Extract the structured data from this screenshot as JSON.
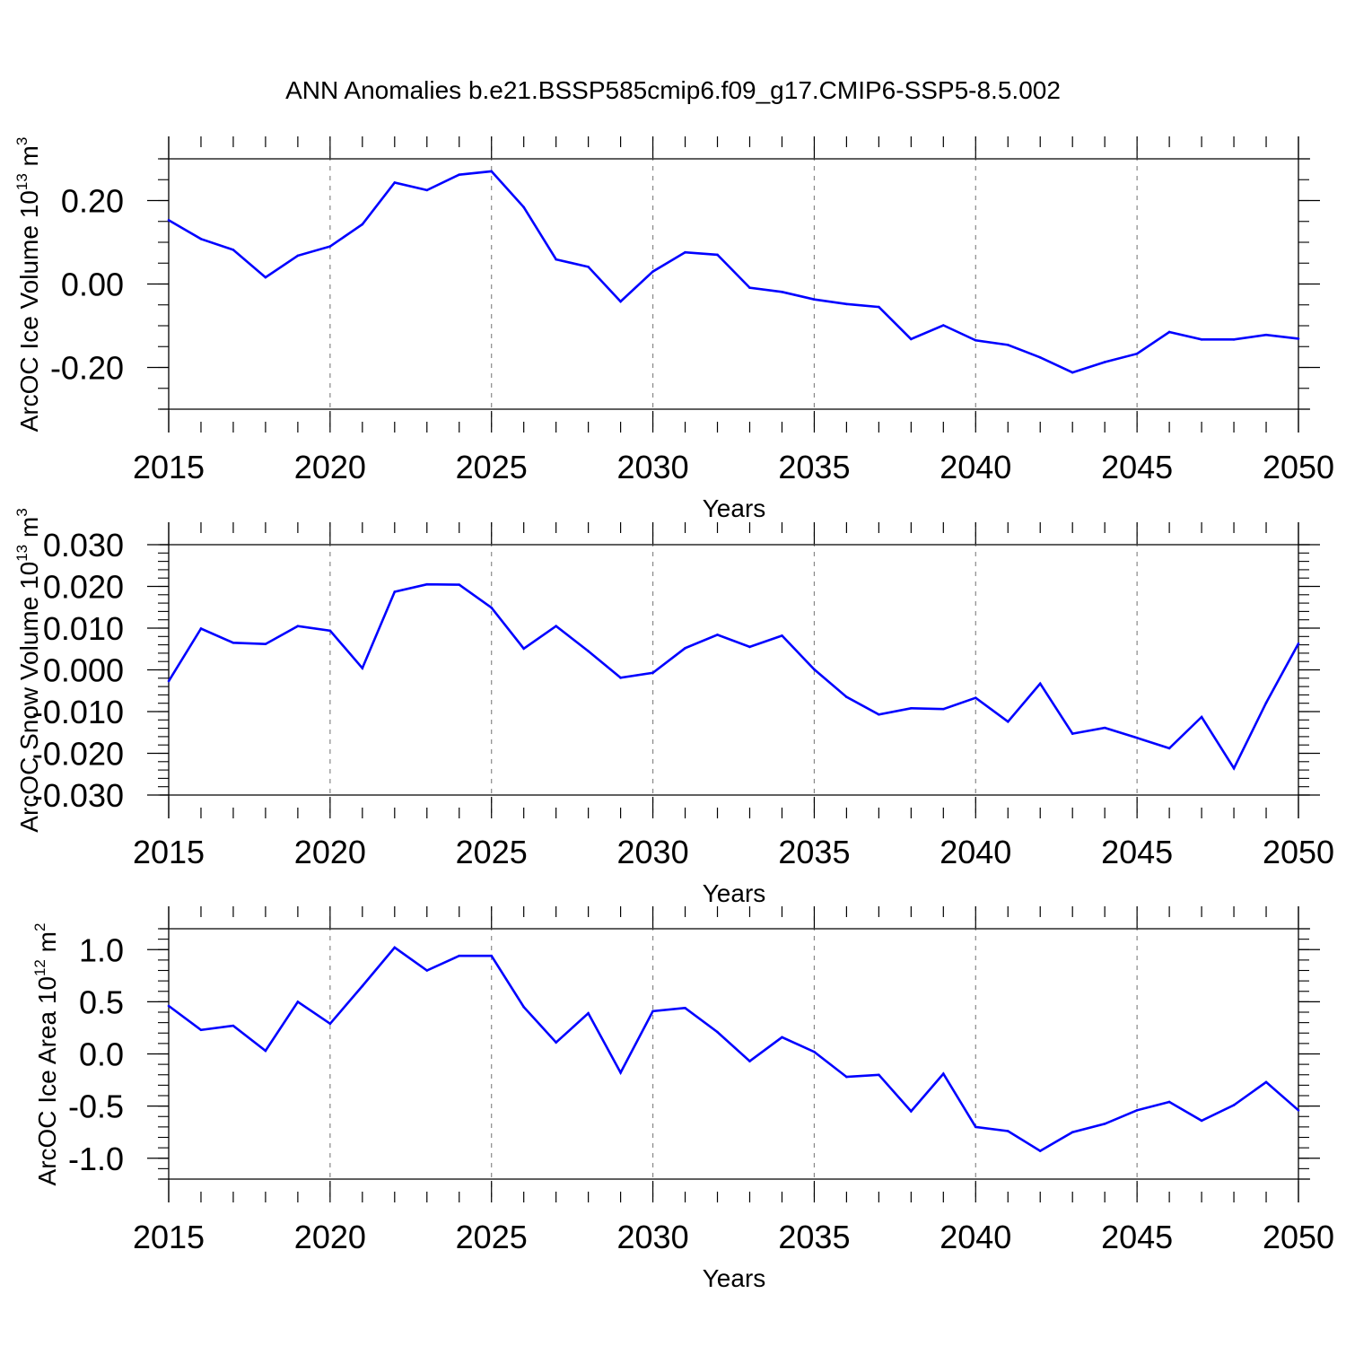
{
  "title": "ANN Anomalies b.e21.BSSP585cmip6.f09_g17.CMIP6-SSP5-8.5.002",
  "colors": {
    "line": "#0000ff",
    "axis": "#000000",
    "grid": "#888888"
  },
  "chart_data": [
    {
      "type": "line",
      "ylabel": "ArcOC Ice Volume 10",
      "ylabel_exp": "13",
      "ylabel_unit": "m",
      "ylabel_unit_exp": "3",
      "xlabel": "Years",
      "xlim": [
        2015,
        2050
      ],
      "ylim": [
        -0.3,
        0.3
      ],
      "yticks": [
        -0.2,
        0.0,
        0.2
      ],
      "ytick_labels": [
        "-0.20",
        "0.00",
        "0.20"
      ],
      "yminor_step": 0.05,
      "xticks": [
        2015,
        2020,
        2025,
        2030,
        2035,
        2040,
        2045,
        2050
      ],
      "xtick_labels": [
        "2015",
        "2020",
        "2025",
        "2030",
        "2035",
        "2040",
        "2045",
        "2050"
      ],
      "x": [
        2015,
        2016,
        2017,
        2018,
        2019,
        2020,
        2021,
        2022,
        2023,
        2024,
        2025,
        2026,
        2027,
        2028,
        2029,
        2030,
        2031,
        2032,
        2033,
        2034,
        2035,
        2036,
        2037,
        2038,
        2039,
        2040,
        2041,
        2042,
        2043,
        2044,
        2045,
        2046,
        2047,
        2048,
        2049,
        2050
      ],
      "values": [
        0.153,
        0.108,
        0.082,
        0.016,
        0.068,
        0.09,
        0.143,
        0.243,
        0.225,
        0.262,
        0.27,
        0.184,
        0.059,
        0.041,
        -0.042,
        0.03,
        0.076,
        0.07,
        -0.009,
        -0.019,
        -0.037,
        -0.048,
        -0.055,
        -0.132,
        -0.099,
        -0.135,
        -0.146,
        -0.176,
        -0.212,
        -0.187,
        -0.167,
        -0.115,
        -0.133,
        -0.133,
        -0.122,
        -0.131
      ]
    },
    {
      "type": "line",
      "ylabel": "ArcOC Snow Volume 10",
      "ylabel_exp": "13",
      "ylabel_unit": "m",
      "ylabel_unit_exp": "3",
      "xlabel": "Years",
      "xlim": [
        2015,
        2050
      ],
      "ylim": [
        -0.03,
        0.03
      ],
      "yticks": [
        -0.03,
        -0.02,
        -0.01,
        0.0,
        0.01,
        0.02,
        0.03
      ],
      "ytick_labels": [
        "-0.030",
        "-0.020",
        "-0.010",
        "0.000",
        "0.010",
        "0.020",
        "0.030"
      ],
      "yminor_step": 0.002,
      "xticks": [
        2015,
        2020,
        2025,
        2030,
        2035,
        2040,
        2045,
        2050
      ],
      "xtick_labels": [
        "2015",
        "2020",
        "2025",
        "2030",
        "2035",
        "2040",
        "2045",
        "2050"
      ],
      "x": [
        2015,
        2016,
        2017,
        2018,
        2019,
        2020,
        2021,
        2022,
        2023,
        2024,
        2025,
        2026,
        2027,
        2028,
        2029,
        2030,
        2031,
        2032,
        2033,
        2034,
        2035,
        2036,
        2037,
        2038,
        2039,
        2040,
        2041,
        2042,
        2043,
        2044,
        2045,
        2046,
        2047,
        2048,
        2049,
        2050
      ],
      "values": [
        -0.0027,
        0.0099,
        0.0065,
        0.0062,
        0.0105,
        0.0094,
        0.0004,
        0.0187,
        0.0205,
        0.0204,
        0.0149,
        0.0051,
        0.0105,
        0.0045,
        -0.0019,
        -0.0007,
        0.0052,
        0.0084,
        0.0055,
        0.0082,
        0.0001,
        -0.0065,
        -0.0107,
        -0.0092,
        -0.0094,
        -0.0067,
        -0.0124,
        -0.0033,
        -0.0153,
        -0.0139,
        -0.0163,
        -0.0188,
        -0.0113,
        -0.0236,
        -0.0079,
        0.0063
      ]
    },
    {
      "type": "line",
      "ylabel": "ArcOC Ice Area 10",
      "ylabel_exp": "12",
      "ylabel_unit": "m",
      "ylabel_unit_exp": "2",
      "xlabel": "Years",
      "xlim": [
        2015,
        2050
      ],
      "ylim": [
        -1.2,
        1.2
      ],
      "yticks": [
        -1.0,
        -0.5,
        0.0,
        0.5,
        1.0
      ],
      "ytick_labels": [
        "-1.0",
        "-0.5",
        "0.0",
        "0.5",
        "1.0"
      ],
      "yminor_step": 0.1,
      "xticks": [
        2015,
        2020,
        2025,
        2030,
        2035,
        2040,
        2045,
        2050
      ],
      "xtick_labels": [
        "2015",
        "2020",
        "2025",
        "2030",
        "2035",
        "2040",
        "2045",
        "2050"
      ],
      "x": [
        2015,
        2016,
        2017,
        2018,
        2019,
        2020,
        2021,
        2022,
        2023,
        2024,
        2025,
        2026,
        2027,
        2028,
        2029,
        2030,
        2031,
        2032,
        2033,
        2034,
        2035,
        2036,
        2037,
        2038,
        2039,
        2040,
        2041,
        2042,
        2043,
        2044,
        2045,
        2046,
        2047,
        2048,
        2049,
        2050
      ],
      "values": [
        0.46,
        0.23,
        0.27,
        0.03,
        0.5,
        0.29,
        0.65,
        1.02,
        0.8,
        0.94,
        0.94,
        0.45,
        0.11,
        0.39,
        -0.18,
        0.41,
        0.44,
        0.21,
        -0.07,
        0.16,
        0.02,
        -0.22,
        -0.2,
        -0.55,
        -0.19,
        -0.7,
        -0.74,
        -0.93,
        -0.75,
        -0.67,
        -0.54,
        -0.46,
        -0.64,
        -0.49,
        -0.27,
        -0.54
      ]
    }
  ]
}
